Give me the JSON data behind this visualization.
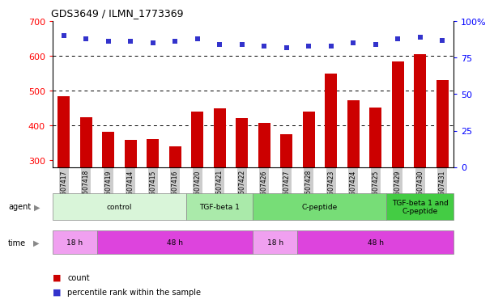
{
  "title": "GDS3649 / ILMN_1773369",
  "samples": [
    "GSM507417",
    "GSM507418",
    "GSM507419",
    "GSM507414",
    "GSM507415",
    "GSM507416",
    "GSM507420",
    "GSM507421",
    "GSM507422",
    "GSM507426",
    "GSM507427",
    "GSM507428",
    "GSM507423",
    "GSM507424",
    "GSM507425",
    "GSM507429",
    "GSM507430",
    "GSM507431"
  ],
  "counts": [
    485,
    423,
    382,
    358,
    360,
    340,
    440,
    450,
    420,
    407,
    375,
    440,
    550,
    473,
    452,
    585,
    605,
    530
  ],
  "percentiles": [
    90,
    88,
    86,
    86,
    85,
    86,
    88,
    84,
    84,
    83,
    82,
    83,
    83,
    85,
    84,
    88,
    89,
    87
  ],
  "bar_color": "#cc0000",
  "dot_color": "#3333cc",
  "ylim_left": [
    280,
    700
  ],
  "ylim_right": [
    0,
    100
  ],
  "yticks_left": [
    300,
    400,
    500,
    600,
    700
  ],
  "yticks_right": [
    0,
    25,
    50,
    75,
    100
  ],
  "grid_lines": [
    400,
    500,
    600
  ],
  "agent_groups": [
    {
      "label": "control",
      "start": 0,
      "end": 6,
      "color": "#d9f5d9"
    },
    {
      "label": "TGF-beta 1",
      "start": 6,
      "end": 9,
      "color": "#aaeaaa"
    },
    {
      "label": "C-peptide",
      "start": 9,
      "end": 15,
      "color": "#77dd77"
    },
    {
      "label": "TGF-beta 1 and\nC-peptide",
      "start": 15,
      "end": 18,
      "color": "#44cc44"
    }
  ],
  "time_groups": [
    {
      "label": "18 h",
      "start": 0,
      "end": 2,
      "color": "#f0a0f0"
    },
    {
      "label": "48 h",
      "start": 2,
      "end": 9,
      "color": "#dd44dd"
    },
    {
      "label": "18 h",
      "start": 9,
      "end": 11,
      "color": "#f0a0f0"
    },
    {
      "label": "48 h",
      "start": 11,
      "end": 18,
      "color": "#dd44dd"
    }
  ],
  "legend_count_color": "#cc0000",
  "legend_dot_color": "#3333cc",
  "background_color": "#ffffff",
  "tick_bg_color": "#cccccc"
}
